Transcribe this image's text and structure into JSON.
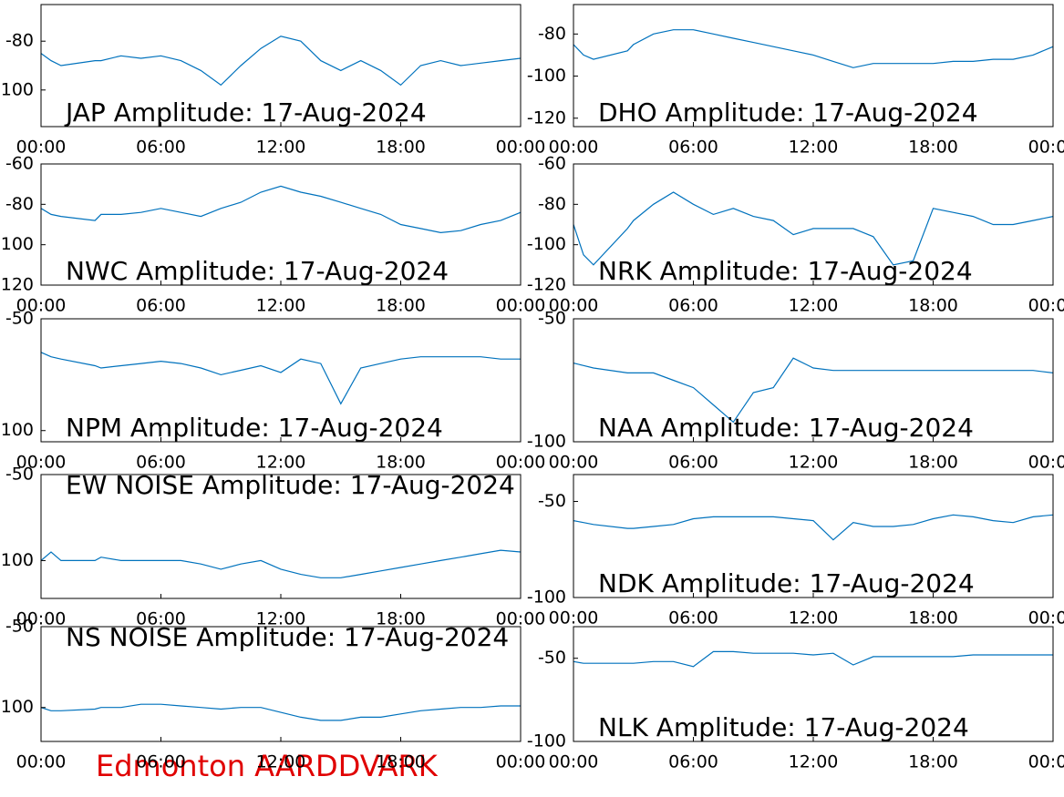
{
  "chart_data": [
    {
      "type": "line",
      "title": "JAP Amplitude: 17-Aug-2024",
      "color": "#0072bd",
      "x": [
        0,
        0.5,
        1,
        2.7,
        3,
        4,
        5,
        6,
        7,
        8,
        9,
        10,
        11,
        12,
        13,
        14,
        15,
        16,
        17,
        18,
        19,
        20,
        21,
        22,
        23,
        24
      ],
      "values": [
        -85,
        -88,
        -90,
        -88,
        -88,
        -86,
        -87,
        -86,
        -88,
        -92,
        -98,
        -90,
        -83,
        -78,
        -80,
        -88,
        -92,
        -88,
        -92,
        -98,
        -90,
        -88,
        -90,
        -89,
        -88,
        -87
      ],
      "xlim": [
        0,
        24
      ],
      "xticks": [
        {
          "value": 0,
          "label": "00:00"
        },
        {
          "value": 6,
          "label": "06:00"
        },
        {
          "value": 12,
          "label": "12:00"
        },
        {
          "value": 18,
          "label": "18:00"
        },
        {
          "value": 24,
          "label": "00:00"
        }
      ],
      "ylim": [
        -115,
        -65
      ],
      "yticks": [
        -100,
        -80
      ]
    },
    {
      "type": "line",
      "title": "DHO Amplitude: 17-Aug-2024",
      "color": "#0072bd",
      "x": [
        0,
        0.5,
        1,
        2.7,
        3,
        4,
        5,
        6,
        7,
        8,
        9,
        10,
        11,
        12,
        13,
        14,
        15,
        16,
        17,
        18,
        19,
        20,
        21,
        22,
        23,
        24
      ],
      "values": [
        -85,
        -90,
        -92,
        -88,
        -85,
        -80,
        -78,
        -78,
        -80,
        -82,
        -84,
        -86,
        -88,
        -90,
        -93,
        -96,
        -94,
        -94,
        -94,
        -94,
        -93,
        -93,
        -92,
        -92,
        -90,
        -86
      ],
      "xlim": [
        0,
        24
      ],
      "xticks": [
        {
          "value": 0,
          "label": "00:00"
        },
        {
          "value": 6,
          "label": "06:00"
        },
        {
          "value": 12,
          "label": "12:00"
        },
        {
          "value": 18,
          "label": "18:00"
        },
        {
          "value": 24,
          "label": "00:00"
        }
      ],
      "ylim": [
        -124,
        -66
      ],
      "yticks": [
        -120,
        -100,
        -80
      ]
    },
    {
      "type": "line",
      "title": "NWC Amplitude: 17-Aug-2024",
      "color": "#0072bd",
      "x": [
        0,
        0.5,
        1,
        2.7,
        3,
        4,
        5,
        6,
        7,
        8,
        9,
        10,
        11,
        12,
        13,
        14,
        15,
        16,
        17,
        18,
        19,
        20,
        21,
        22,
        23,
        24
      ],
      "values": [
        -82,
        -85,
        -86,
        -88,
        -85,
        -85,
        -84,
        -82,
        -84,
        -86,
        -82,
        -79,
        -74,
        -71,
        -74,
        -76,
        -79,
        -82,
        -85,
        -90,
        -92,
        -94,
        -93,
        -90,
        -88,
        -84
      ],
      "xlim": [
        0,
        24
      ],
      "xticks": [
        {
          "value": 0,
          "label": "00:00"
        },
        {
          "value": 6,
          "label": "06:00"
        },
        {
          "value": 12,
          "label": "12:00"
        },
        {
          "value": 18,
          "label": "18:00"
        },
        {
          "value": 24,
          "label": "00:00"
        }
      ],
      "ylim": [
        -120,
        -60
      ],
      "yticks": [
        -120,
        -100,
        -80,
        -60
      ]
    },
    {
      "type": "line",
      "title": "NRK Amplitude: 17-Aug-2024",
      "color": "#0072bd",
      "x": [
        0,
        0.5,
        1,
        2.7,
        3,
        4,
        5,
        6,
        7,
        8,
        9,
        10,
        11,
        12,
        13,
        14,
        15,
        16,
        17,
        18,
        19,
        20,
        21,
        22,
        23,
        24
      ],
      "values": [
        -90,
        -105,
        -110,
        -92,
        -88,
        -80,
        -74,
        -80,
        -85,
        -82,
        -86,
        -88,
        -95,
        -92,
        -92,
        -92,
        -96,
        -110,
        -108,
        -82,
        -84,
        -86,
        -90,
        -90,
        -88,
        -86
      ],
      "xlim": [
        0,
        24
      ],
      "xticks": [
        {
          "value": 0,
          "label": "00:00"
        },
        {
          "value": 6,
          "label": "06:00"
        },
        {
          "value": 12,
          "label": "12:00"
        },
        {
          "value": 18,
          "label": "18:00"
        },
        {
          "value": 24,
          "label": "00:00"
        }
      ],
      "ylim": [
        -120,
        -60
      ],
      "yticks": [
        -120,
        -100,
        -80,
        -60
      ]
    },
    {
      "type": "line",
      "title": "NPM Amplitude: 17-Aug-2024",
      "color": "#0072bd",
      "x": [
        0,
        0.5,
        1,
        2.7,
        3,
        4,
        5,
        6,
        7,
        8,
        9,
        10,
        11,
        12,
        13,
        14,
        15,
        16,
        17,
        18,
        19,
        20,
        21,
        22,
        23,
        24
      ],
      "values": [
        -65,
        -67,
        -68,
        -71,
        -72,
        -71,
        -70,
        -69,
        -70,
        -72,
        -75,
        -73,
        -71,
        -74,
        -68,
        -70,
        -88,
        -72,
        -70,
        -68,
        -67,
        -67,
        -67,
        -67,
        -68,
        -68
      ],
      "xlim": [
        0,
        24
      ],
      "xticks": [
        {
          "value": 0,
          "label": "00:00"
        },
        {
          "value": 6,
          "label": "06:00"
        },
        {
          "value": 12,
          "label": "12:00"
        },
        {
          "value": 18,
          "label": "18:00"
        },
        {
          "value": 24,
          "label": "00:00"
        }
      ],
      "ylim": [
        -105,
        -50
      ],
      "yticks": [
        -100,
        -50
      ]
    },
    {
      "type": "line",
      "title": "NAA Amplitude: 17-Aug-2024",
      "color": "#0072bd",
      "x": [
        0,
        0.5,
        1,
        2.7,
        3,
        4,
        5,
        6,
        7,
        8,
        9,
        10,
        11,
        12,
        13,
        14,
        15,
        16,
        17,
        18,
        19,
        20,
        21,
        22,
        23,
        24
      ],
      "values": [
        -68,
        -69,
        -70,
        -72,
        -72,
        -72,
        -75,
        -78,
        -85,
        -92,
        -80,
        -78,
        -66,
        -70,
        -71,
        -71,
        -71,
        -71,
        -71,
        -71,
        -71,
        -71,
        -71,
        -71,
        -71,
        -72
      ],
      "xlim": [
        0,
        24
      ],
      "xticks": [
        {
          "value": 0,
          "label": "00:00"
        },
        {
          "value": 6,
          "label": "06:00"
        },
        {
          "value": 12,
          "label": "12:00"
        },
        {
          "value": 18,
          "label": "18:00"
        },
        {
          "value": 24,
          "label": "00:00"
        }
      ],
      "ylim": [
        -100,
        -50
      ],
      "yticks": [
        -100,
        -50
      ]
    },
    {
      "type": "line",
      "title": "EW NOISE Amplitude: 17-Aug-2024",
      "color": "#0072bd",
      "x": [
        0,
        0.5,
        1,
        2.7,
        3,
        4,
        5,
        6,
        7,
        8,
        9,
        10,
        11,
        12,
        13,
        14,
        15,
        16,
        17,
        18,
        19,
        20,
        21,
        22,
        23,
        24
      ],
      "values": [
        -100,
        -95,
        -100,
        -100,
        -98,
        -100,
        -100,
        -100,
        -100,
        -102,
        -105,
        -102,
        -100,
        -105,
        -108,
        -110,
        -110,
        -108,
        -106,
        -104,
        -102,
        -100,
        -98,
        -96,
        -94,
        -95
      ],
      "xlim": [
        0,
        24
      ],
      "xticks": [
        {
          "value": 0,
          "label": "00:00"
        },
        {
          "value": 6,
          "label": "06:00"
        },
        {
          "value": 12,
          "label": "12:00"
        },
        {
          "value": 18,
          "label": "18:00"
        },
        {
          "value": 24,
          "label": "00:00"
        }
      ],
      "ylim": [
        -122,
        -50
      ],
      "yticks": [
        -100,
        -50
      ]
    },
    {
      "type": "line",
      "title": "NDK Amplitude: 17-Aug-2024",
      "color": "#0072bd",
      "x": [
        0,
        0.5,
        1,
        2.7,
        3,
        4,
        5,
        6,
        7,
        8,
        9,
        10,
        11,
        12,
        13,
        14,
        15,
        16,
        17,
        18,
        19,
        20,
        21,
        22,
        23,
        24
      ],
      "values": [
        -60,
        -61,
        -62,
        -64,
        -64,
        -63,
        -62,
        -59,
        -58,
        -58,
        -58,
        -58,
        -59,
        -60,
        -70,
        -61,
        -63,
        -63,
        -62,
        -59,
        -57,
        -58,
        -60,
        -61,
        -58,
        -57
      ],
      "xlim": [
        0,
        24
      ],
      "xticks": [
        {
          "value": 0,
          "label": "00:00"
        },
        {
          "value": 6,
          "label": "06:00"
        },
        {
          "value": 12,
          "label": "12:00"
        },
        {
          "value": 18,
          "label": "18:00"
        },
        {
          "value": 24,
          "label": "00:00"
        }
      ],
      "ylim": [
        -100,
        -36
      ],
      "yticks": [
        -100,
        -50
      ]
    },
    {
      "type": "line",
      "title": "NS NOISE Amplitude: 17-Aug-2024",
      "color": "#0072bd",
      "x": [
        0,
        0.5,
        1,
        2.7,
        3,
        4,
        5,
        6,
        7,
        8,
        9,
        10,
        11,
        12,
        13,
        14,
        15,
        16,
        17,
        18,
        19,
        20,
        21,
        22,
        23,
        24
      ],
      "values": [
        -100,
        -102,
        -102,
        -101,
        -100,
        -100,
        -98,
        -98,
        -99,
        -100,
        -101,
        -100,
        -100,
        -103,
        -106,
        -108,
        -108,
        -106,
        -106,
        -104,
        -102,
        -101,
        -100,
        -100,
        -99,
        -99
      ],
      "xlim": [
        0,
        24
      ],
      "xticks": [
        {
          "value": 0,
          "label": "00:00"
        },
        {
          "value": 6,
          "label": "06:00"
        },
        {
          "value": 12,
          "label": "12:00"
        },
        {
          "value": 18,
          "label": "18:00"
        },
        {
          "value": 24,
          "label": "00:00"
        }
      ],
      "ylim": [
        -121,
        -50
      ],
      "yticks": [
        -100,
        -50
      ]
    },
    {
      "type": "line",
      "title": "NLK Amplitude: 17-Aug-2024",
      "color": "#0072bd",
      "x": [
        0,
        0.5,
        1,
        2.7,
        3,
        4,
        5,
        6,
        7,
        8,
        9,
        10,
        11,
        12,
        13,
        14,
        15,
        16,
        17,
        18,
        19,
        20,
        21,
        22,
        23,
        24
      ],
      "values": [
        -52,
        -53,
        -53,
        -53,
        -53,
        -52,
        -52,
        -55,
        -46,
        -46,
        -47,
        -47,
        -47,
        -48,
        -47,
        -54,
        -49,
        -49,
        -49,
        -49,
        -49,
        -48,
        -48,
        -48,
        -48,
        -48
      ],
      "xlim": [
        0,
        24
      ],
      "xticks": [
        {
          "value": 0,
          "label": "00:00"
        },
        {
          "value": 6,
          "label": "06:00"
        },
        {
          "value": 12,
          "label": "12:00"
        },
        {
          "value": 18,
          "label": "18:00"
        },
        {
          "value": 24,
          "label": "00:00"
        }
      ],
      "ylim": [
        -100,
        -31
      ],
      "yticks": [
        -100,
        -50
      ]
    }
  ],
  "caption": "Edmonton AARDDVARK"
}
